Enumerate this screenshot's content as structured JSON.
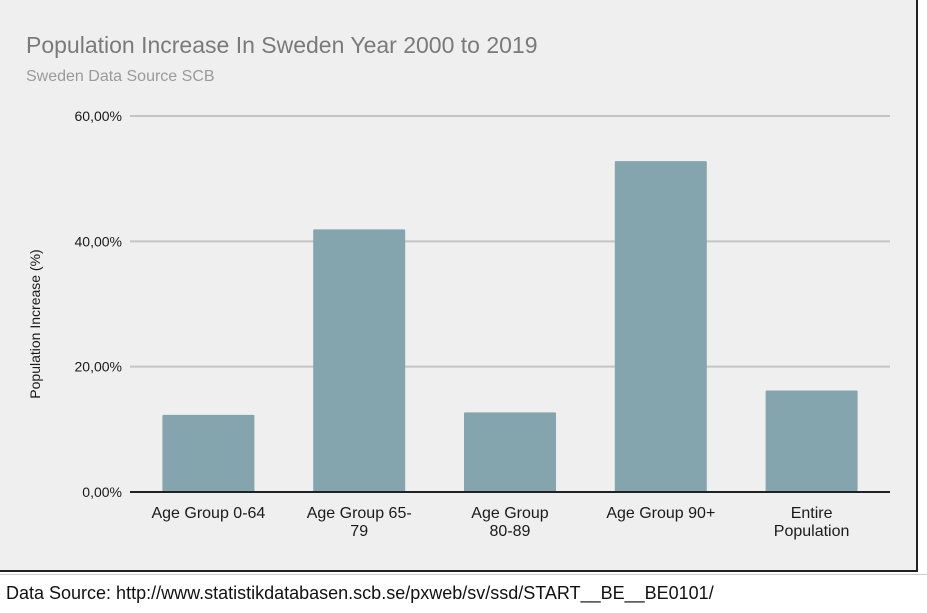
{
  "chart_data": {
    "type": "bar",
    "title": "Population Increase In Sweden Year 2000 to 2019",
    "subtitle": "Sweden Data Source SCB",
    "xlabel": "",
    "ylabel": "Population Increase (%)",
    "categories": [
      [
        "Age Group 0-64"
      ],
      [
        "Age Group 65-",
        "79"
      ],
      [
        "Age Group",
        "80-89"
      ],
      [
        "Age Group 90+"
      ],
      [
        "Entire",
        "Population"
      ]
    ],
    "values": [
      12.3,
      41.9,
      12.7,
      52.8,
      16.2
    ],
    "ylim": [
      0,
      60
    ],
    "yticks": [
      0,
      20,
      40,
      60
    ],
    "ytick_labels": [
      "0,00%",
      "20,00%",
      "40,00%",
      "60,00%"
    ],
    "grid": true,
    "colors": {
      "bar": "#84a5ae",
      "grid": "#c4c4c4",
      "axis": "#222222",
      "title": "#7a7a7a",
      "subtitle": "#9a9a9a",
      "text": "#1a1a1a"
    }
  },
  "caption": "Data Source: http://www.statistikdatabasen.scb.se/pxweb/sv/ssd/START__BE__BE0101/"
}
